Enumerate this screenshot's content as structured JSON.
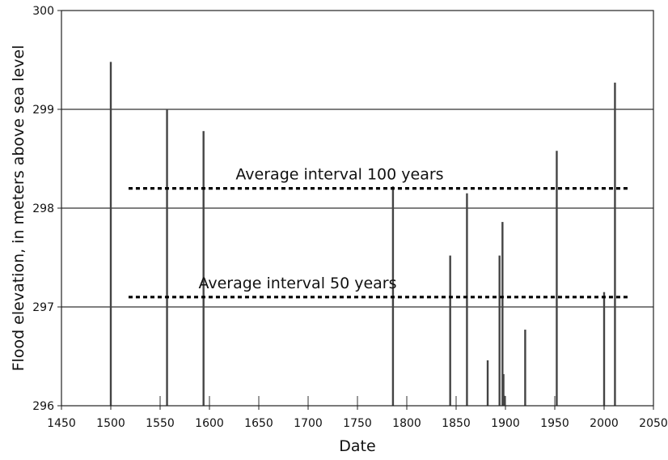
{
  "chart_data": {
    "type": "bar",
    "title": "",
    "xlabel": "Date",
    "ylabel": "Flood elevation, in meters above sea level",
    "xlim": [
      1450,
      2050
    ],
    "ylim": [
      296,
      300
    ],
    "x_ticks": [
      1450,
      1500,
      1550,
      1600,
      1650,
      1700,
      1750,
      1800,
      1850,
      1900,
      1950,
      2000,
      2050
    ],
    "y_ticks": [
      296,
      297,
      298,
      299,
      300
    ],
    "grid": "horizontal",
    "legend": "none",
    "bar_color": "#444444",
    "series": [
      {
        "x": [
          1500,
          1557,
          1594,
          1786,
          1844,
          1861,
          1882,
          1894,
          1897,
          1898,
          1899,
          1920,
          1952,
          2000,
          2011
        ],
        "values": [
          299.48,
          299.0,
          298.78,
          298.22,
          297.52,
          298.15,
          296.46,
          297.52,
          297.86,
          296.32,
          296.1,
          296.77,
          298.58,
          297.15,
          299.27
        ]
      }
    ],
    "minor_marks": [
      1550,
      1600,
      1650,
      1700,
      1750,
      1800,
      1850,
      1900,
      1950,
      2000
    ],
    "reference_lines": [
      {
        "label": "Average interval 100 years",
        "y": 298.2,
        "x_start": 1518,
        "x_end": 2025
      },
      {
        "label": "Average interval 50 years",
        "y": 297.1,
        "x_start": 1518,
        "x_end": 2025
      }
    ]
  }
}
